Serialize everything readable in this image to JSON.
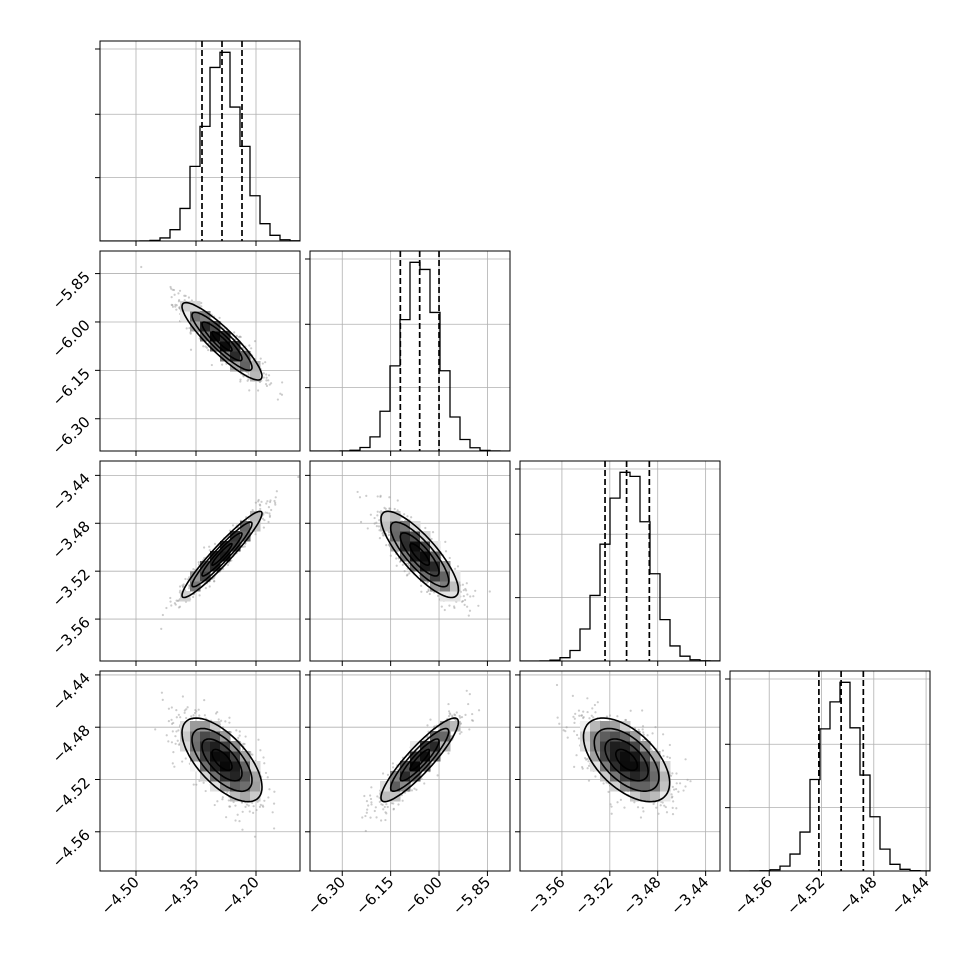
{
  "chart_data": {
    "type": "corner",
    "grid": true,
    "parameters": [
      {
        "range": [
          -4.59,
          -4.09
        ],
        "ticks": [
          -4.5,
          -4.35,
          -4.2
        ],
        "tick_labels": [
          "−4.50",
          "−4.35",
          "−4.20"
        ],
        "mean": -4.285,
        "sd": 0.05,
        "quantiles": [
          -4.335,
          -4.285,
          -4.235
        ]
      },
      {
        "range": [
          -6.4,
          -5.78
        ],
        "ticks": [
          -6.3,
          -6.15,
          -6.0,
          -5.85
        ],
        "tick_labels": [
          "−6.30",
          "−6.15",
          "−6.00",
          "−5.85"
        ],
        "mean": -6.06,
        "sd": 0.06,
        "quantiles": [
          -6.12,
          -6.06,
          -6.0
        ]
      },
      {
        "range": [
          -3.595,
          -3.428
        ],
        "ticks": [
          -3.56,
          -3.52,
          -3.48,
          -3.44
        ],
        "tick_labels": [
          "−3.56",
          "−3.52",
          "−3.48",
          "−3.44"
        ],
        "mean": -3.506,
        "sd": 0.018,
        "quantiles": [
          -3.524,
          -3.506,
          -3.487
        ]
      },
      {
        "range": [
          -4.59,
          -4.437
        ],
        "ticks": [
          -4.56,
          -4.52,
          -4.48,
          -4.44
        ],
        "tick_labels": [
          "−4.56",
          "−4.52",
          "−4.48",
          "−4.44"
        ],
        "mean": -4.505,
        "sd": 0.016,
        "quantiles": [
          -4.522,
          -4.505,
          -4.488
        ]
      }
    ],
    "correlations": {
      "1-0": -0.9,
      "2-0": 0.95,
      "2-1": -0.82,
      "3-0": -0.65,
      "3-1": 0.9,
      "3-2": -0.55
    },
    "contour_levels_sigma": [
      0.5,
      1.0,
      1.5,
      2.0
    ]
  }
}
